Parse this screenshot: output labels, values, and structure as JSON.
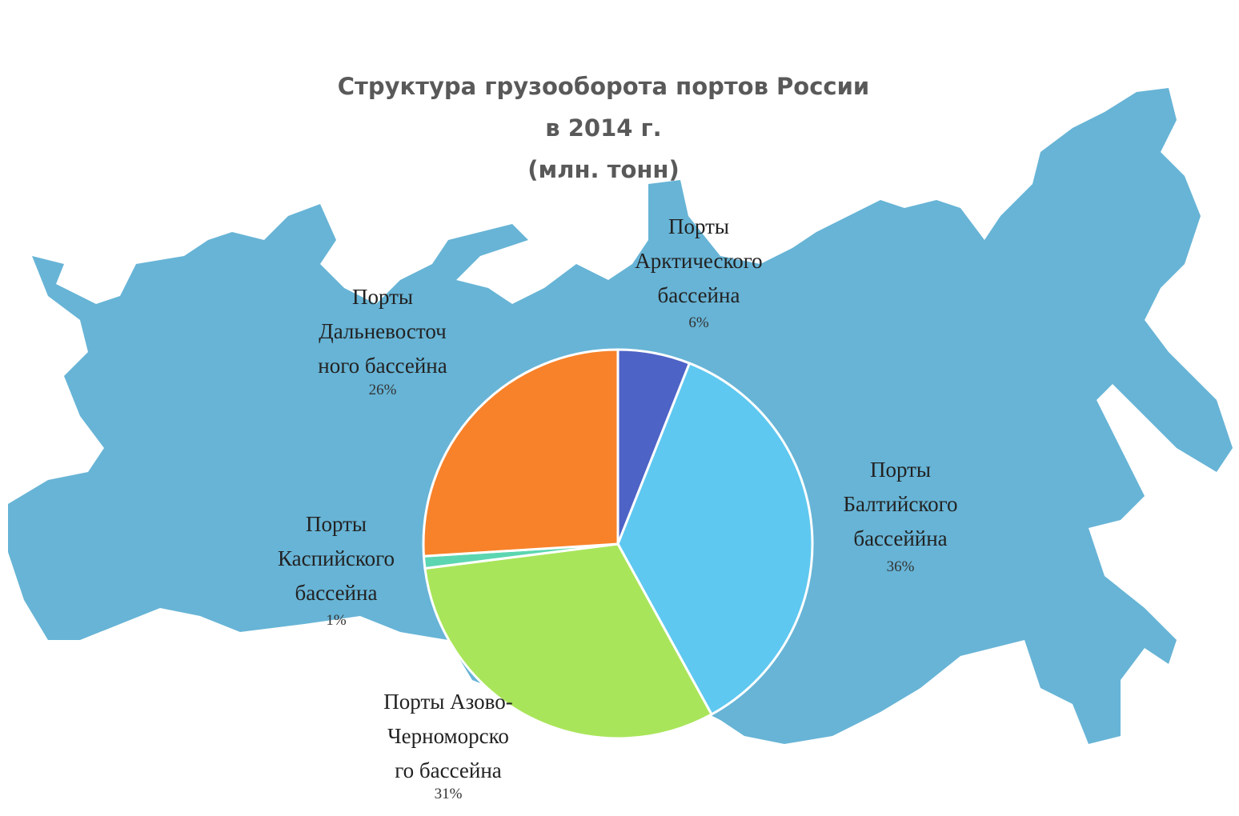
{
  "chart_data": {
    "type": "pie",
    "title": "Структура грузооборота портов России\nв 2014 г.\n(млн. тонн)",
    "categories": [
      "Порты\nАрктического\nбассейна",
      "Порты\nБалтийского\nбассеййна",
      "Порты Азово-\nЧерноморско\nго бассейна",
      "Порты\nКаспийского\nбассейна",
      "Порты\nДальневосточ\nного бассейна"
    ],
    "values": [
      6,
      36,
      31,
      1,
      26
    ],
    "value_labels": [
      "6%",
      "36%",
      "31%",
      "1%",
      "26%"
    ],
    "colors": [
      "#4e63c6",
      "#5ec8f0",
      "#a9e55a",
      "#5cd6b0",
      "#f7822a"
    ]
  }
}
